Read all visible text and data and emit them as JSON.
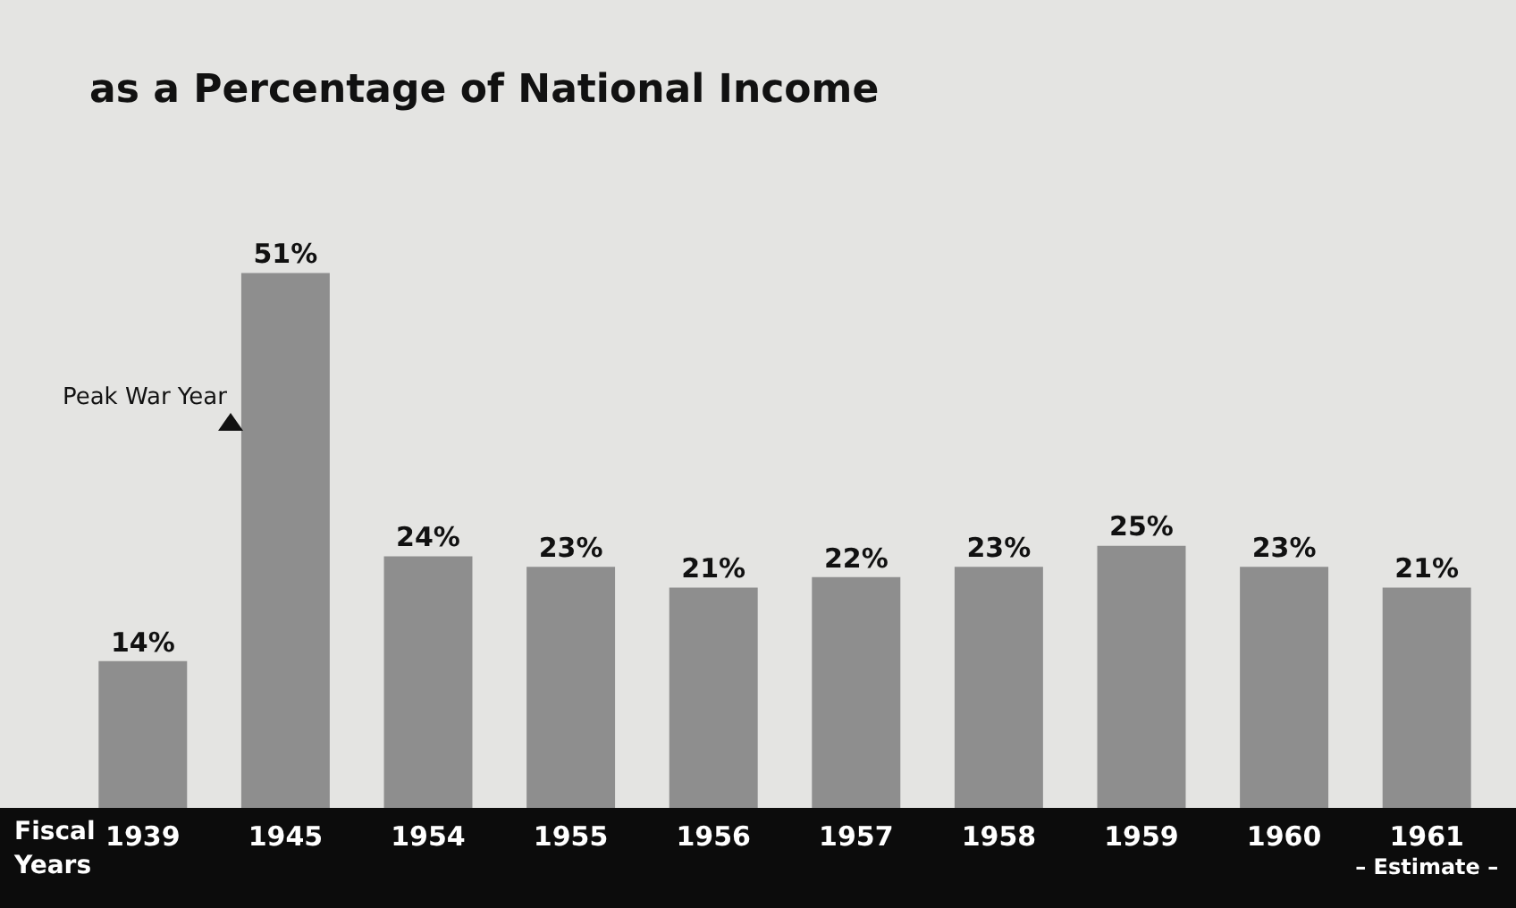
{
  "chart_data": {
    "type": "bar",
    "title": "as a Percentage of National Income",
    "xlabel": "Fiscal Years",
    "categories": [
      "1939",
      "1945",
      "1954",
      "1955",
      "1956",
      "1957",
      "1958",
      "1959",
      "1960",
      "1961"
    ],
    "values": [
      14,
      51,
      24,
      23,
      21,
      22,
      23,
      25,
      23,
      21
    ],
    "value_labels": [
      "14%",
      "51%",
      "24%",
      "23%",
      "21%",
      "22%",
      "23%",
      "25%",
      "23%",
      "21%"
    ],
    "color": "#8e8e8e",
    "grid": false,
    "legend": false,
    "tick_labels": "x",
    "annotations": [
      "Peak War Year",
      "– Estimate –"
    ]
  }
}
